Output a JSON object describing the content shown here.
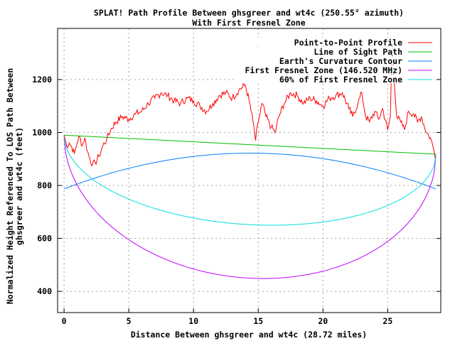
{
  "chart_data": {
    "type": "line",
    "title": "SPLAT! Path Profile Between ghsgreer and wt4c (250.55° azimuth)",
    "subtitle": "With First Fresnel Zone",
    "xlabel": "Distance Between ghsgreer and wt4c (28.72 miles)",
    "ylabel_line1": "Normalized Height Referenced To LOS Path Between",
    "ylabel_line2": "ghsgreer and wt4c (feet)",
    "xlim": [
      -0.5,
      29.1
    ],
    "ylim": [
      320,
      1393
    ],
    "xticks": [
      0,
      5,
      10,
      15,
      20,
      25
    ],
    "yticks": [
      400,
      600,
      800,
      1000,
      1200
    ],
    "grid": true,
    "legend_position": "top-right",
    "path_length": 28.72,
    "series": [
      {
        "name": "Point-to-Point Profile",
        "color": "#ff0000",
        "points": [
          [
            0,
            990
          ],
          [
            0.2,
            950
          ],
          [
            0.4,
            960
          ],
          [
            0.6,
            945
          ],
          [
            0.8,
            920
          ],
          [
            1.0,
            960
          ],
          [
            1.2,
            985
          ],
          [
            1.4,
            950
          ],
          [
            1.6,
            980
          ],
          [
            1.8,
            930
          ],
          [
            2.0,
            900
          ],
          [
            2.2,
            880
          ],
          [
            2.4,
            885
          ],
          [
            2.7,
            910
          ],
          [
            3.0,
            950
          ],
          [
            3.3,
            975
          ],
          [
            3.6,
            1010
          ],
          [
            4.0,
            1040
          ],
          [
            4.5,
            1060
          ],
          [
            5.0,
            1050
          ],
          [
            5.5,
            1070
          ],
          [
            6.0,
            1080
          ],
          [
            6.5,
            1110
          ],
          [
            7.0,
            1130
          ],
          [
            7.5,
            1150
          ],
          [
            8.0,
            1140
          ],
          [
            8.5,
            1120
          ],
          [
            9.0,
            1110
          ],
          [
            9.5,
            1130
          ],
          [
            10.0,
            1120
          ],
          [
            10.5,
            1100
          ],
          [
            11.0,
            1080
          ],
          [
            11.5,
            1110
          ],
          [
            12.0,
            1140
          ],
          [
            12.5,
            1150
          ],
          [
            13.0,
            1130
          ],
          [
            13.5,
            1160
          ],
          [
            14.0,
            1180
          ],
          [
            14.3,
            1120
          ],
          [
            14.6,
            1040
          ],
          [
            14.8,
            970
          ],
          [
            15.0,
            1040
          ],
          [
            15.3,
            1110
          ],
          [
            15.6,
            1060
          ],
          [
            16.0,
            1020
          ],
          [
            16.3,
            1000
          ],
          [
            16.6,
            1060
          ],
          [
            17.0,
            1110
          ],
          [
            17.5,
            1150
          ],
          [
            18.0,
            1140
          ],
          [
            18.5,
            1110
          ],
          [
            19.0,
            1130
          ],
          [
            19.5,
            1120
          ],
          [
            20.0,
            1100
          ],
          [
            20.5,
            1130
          ],
          [
            21.0,
            1140
          ],
          [
            21.5,
            1150
          ],
          [
            22.0,
            1090
          ],
          [
            22.3,
            1060
          ],
          [
            22.7,
            1110
          ],
          [
            23.0,
            1150
          ],
          [
            23.3,
            1060
          ],
          [
            23.6,
            1040
          ],
          [
            24.0,
            1080
          ],
          [
            24.3,
            1050
          ],
          [
            24.6,
            1090
          ],
          [
            25.0,
            1010
          ],
          [
            25.2,
            1060
          ],
          [
            25.35,
            1330
          ],
          [
            25.5,
            1200
          ],
          [
            25.7,
            1060
          ],
          [
            26.0,
            1040
          ],
          [
            26.3,
            1010
          ],
          [
            26.6,
            1080
          ],
          [
            27.0,
            1070
          ],
          [
            27.3,
            1040
          ],
          [
            27.6,
            1060
          ],
          [
            28.0,
            1000
          ],
          [
            28.3,
            980
          ],
          [
            28.5,
            945
          ],
          [
            28.72,
            905
          ]
        ]
      },
      {
        "name": "Line of Sight Path",
        "color": "#00c000",
        "start": 990,
        "end": 918
      },
      {
        "name": "Earth's Curvature Contour",
        "color": "#0080ff",
        "end_value": 787,
        "mid_value": 922
      },
      {
        "name": "First Fresnel Zone (146.520 MHz)",
        "color": "#c000ff",
        "mid_value": 450
      },
      {
        "name": "60% of First Fresnel Zone",
        "color": "#00e0e0",
        "mid_value": 652
      }
    ]
  }
}
